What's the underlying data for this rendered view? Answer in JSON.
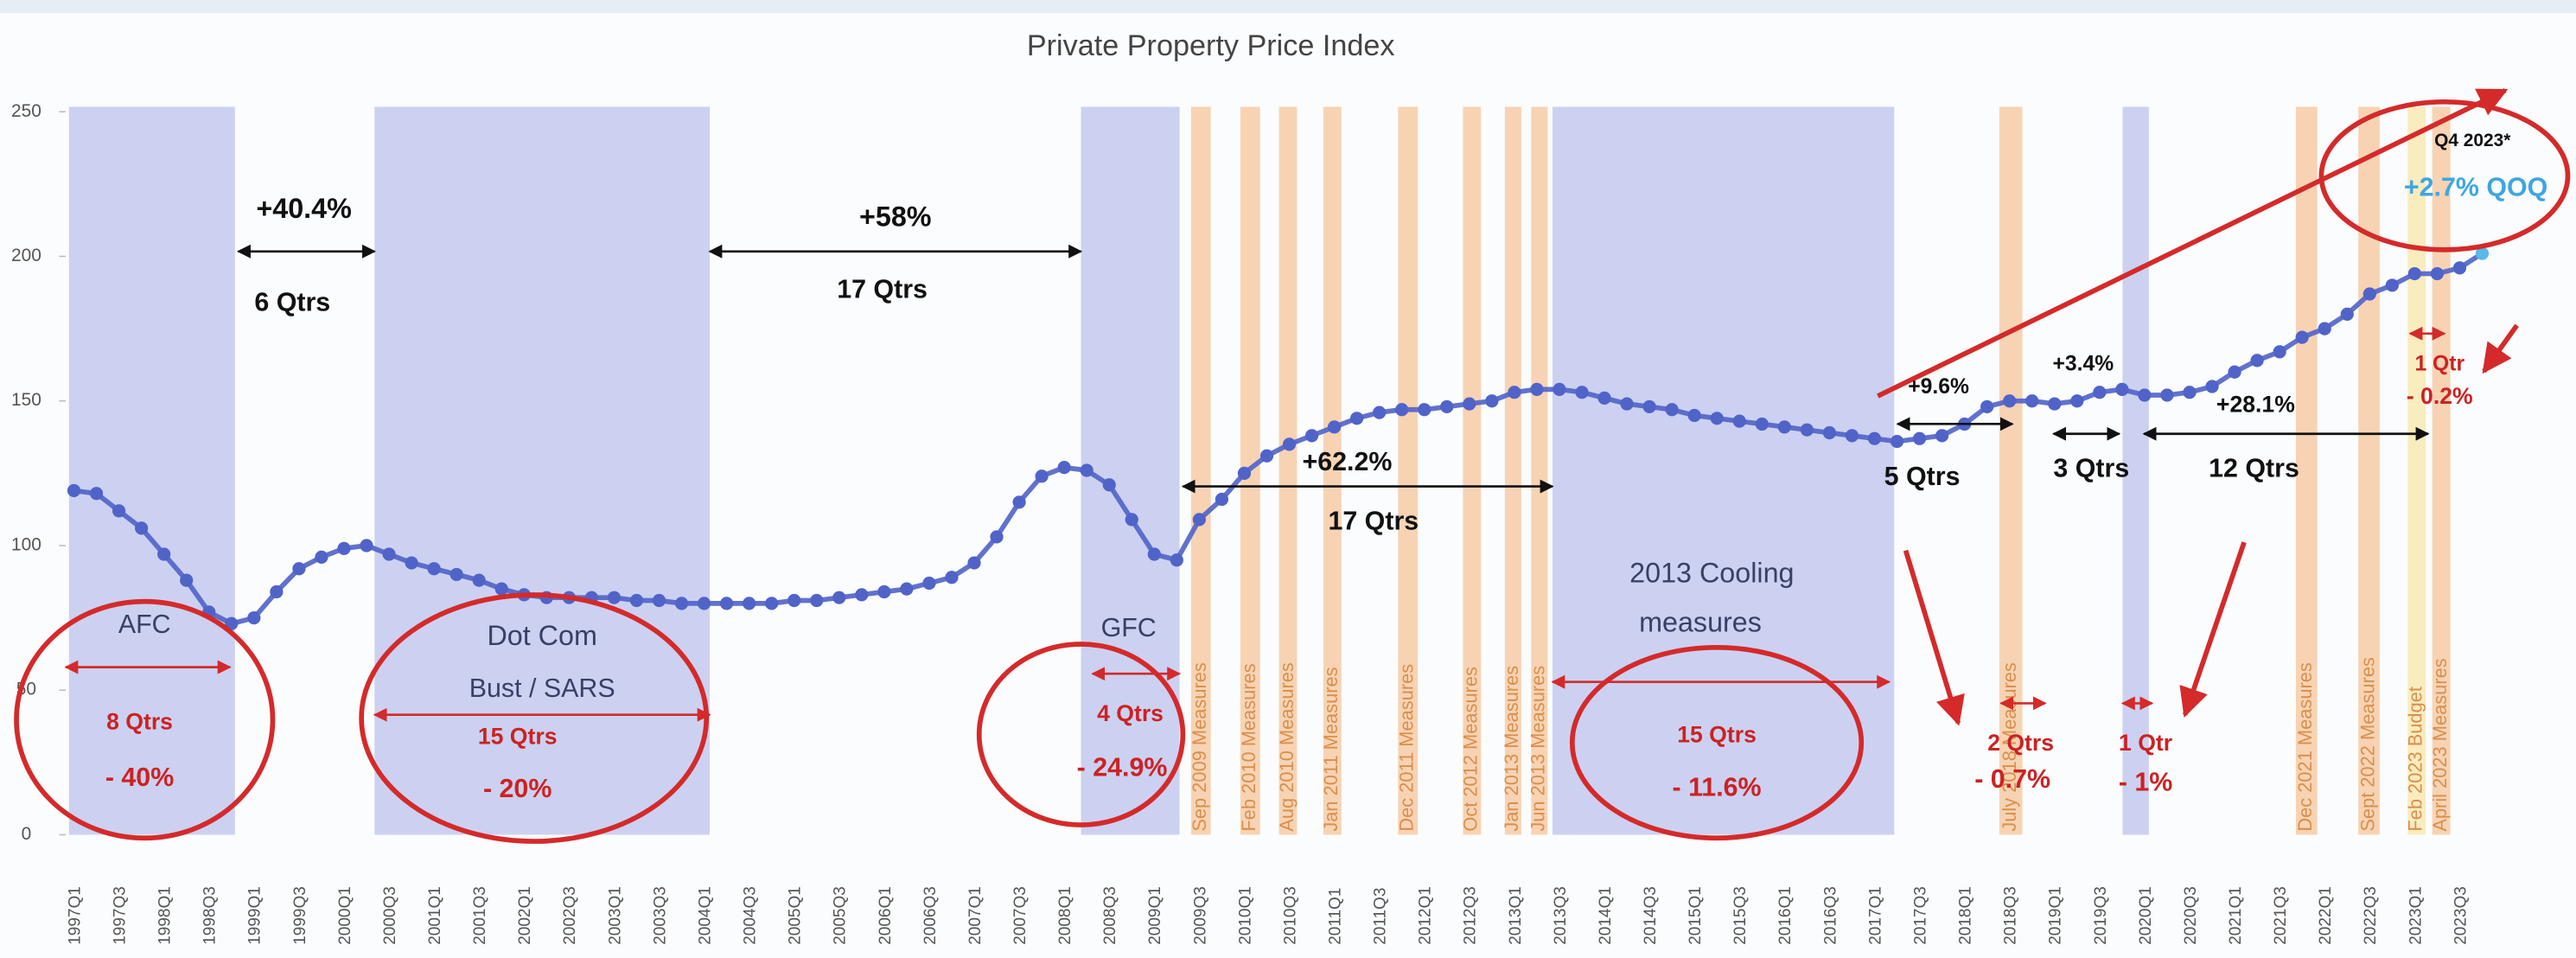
{
  "chart_data": {
    "type": "line",
    "title": "Private Property Price Index",
    "categories": [
      "1997Q1",
      null,
      "1997Q3",
      null,
      "1998Q1",
      null,
      "1998Q3",
      null,
      "1999Q1",
      null,
      "1999Q3",
      null,
      "2000Q1",
      null,
      "2000Q3",
      null,
      "2001Q1",
      null,
      "2001Q3",
      null,
      "2002Q1",
      null,
      "2002Q3",
      null,
      "2003Q1",
      null,
      "2003Q3",
      null,
      "2004Q1",
      null,
      "2004Q3",
      null,
      "2005Q1",
      null,
      "2005Q3",
      null,
      "2006Q1",
      null,
      "2006Q3",
      null,
      "2007Q1",
      null,
      "2007Q3",
      null,
      "2008Q1",
      null,
      "2008Q3",
      null,
      "2009Q1",
      null,
      "2009Q3",
      null,
      "2010Q1",
      null,
      "2010Q3",
      null,
      "2011Q1",
      null,
      "2011Q3",
      null,
      "2012Q1",
      null,
      "2012Q3",
      null,
      "2013Q1",
      null,
      "2013Q3",
      null,
      "2014Q1",
      null,
      "2014Q3",
      null,
      "2015Q1",
      null,
      "2015Q3",
      null,
      "2016Q1",
      null,
      "2016Q3",
      null,
      "2017Q1",
      null,
      "2017Q3",
      null,
      "2018Q1",
      null,
      "2018Q3",
      null,
      "2019Q1",
      null,
      "2019Q3",
      null,
      "2020Q1",
      null,
      "2020Q3",
      null,
      "2021Q1",
      null,
      "2021Q3",
      null,
      "2022Q1",
      null,
      "2022Q3",
      null,
      "2023Q1",
      null,
      "2023Q3",
      null
    ],
    "series": [
      {
        "color": "#5063c8",
        "last_point_color": "#5ab8ea",
        "values": [
          119,
          118,
          112,
          106,
          97,
          88,
          77,
          73,
          75,
          84,
          92,
          96,
          99,
          100,
          97,
          94,
          92,
          90,
          88,
          85,
          83,
          82,
          82,
          82,
          82,
          81,
          81,
          80,
          80,
          80,
          80,
          80,
          81,
          81,
          82,
          83,
          84,
          85,
          87,
          89,
          94,
          103,
          115,
          124,
          127,
          126,
          121,
          109,
          97,
          95,
          109,
          116,
          125,
          131,
          135,
          138,
          141,
          144,
          146,
          147,
          147,
          148,
          149,
          150,
          153,
          154,
          154,
          153,
          151,
          149,
          148,
          147,
          145,
          144,
          143,
          142,
          141,
          140,
          139,
          138,
          137,
          136,
          137,
          138,
          142,
          148,
          150,
          150,
          149,
          150,
          153,
          154,
          152,
          152,
          153,
          155,
          160,
          164,
          167,
          172,
          175,
          180,
          187,
          190,
          194,
          194,
          196,
          201
        ]
      }
    ],
    "ylim": [
      0,
      250
    ],
    "yticks": [
      0,
      50,
      100,
      150,
      200,
      250
    ],
    "grid": false,
    "measures": [
      "Sep 2009 Measures",
      "Feb 2010 Measures",
      "Aug 2010 Measures",
      "Jan 2011 Measures",
      "Dec 2011 Measures",
      "Oct 2012 Measures",
      "Jan 2013 Measures",
      "Jun 2013 Measures",
      "July 2018 Measures",
      "Dec 2021 Measures",
      "Sept 2022 Measures",
      "Feb 2023 Budget",
      "April 2023 Measures"
    ],
    "annotations": [
      "+40.4%",
      "6 Qtrs",
      "+58%",
      "17 Qtrs",
      "AFC",
      "8 Qtrs",
      "- 40%",
      "Dot Com",
      "Bust / SARS",
      "15 Qtrs",
      "- 20%",
      "GFC",
      "4 Qtrs",
      "- 24.9%",
      "+62.2%",
      "17 Qtrs",
      "2013 Cooling",
      "measures",
      "15 Qtrs",
      "- 11.6%",
      "+9.6%",
      "5 Qtrs",
      "+3.4%",
      "3 Qtrs",
      "+28.1%",
      "12 Qtrs",
      "2 Qtrs",
      "- 0.7%",
      "1 Qtr",
      "- 1%",
      "1 Qtr",
      "- 0.2%",
      "Q4 2023*",
      "+2.7% QOQ"
    ]
  }
}
